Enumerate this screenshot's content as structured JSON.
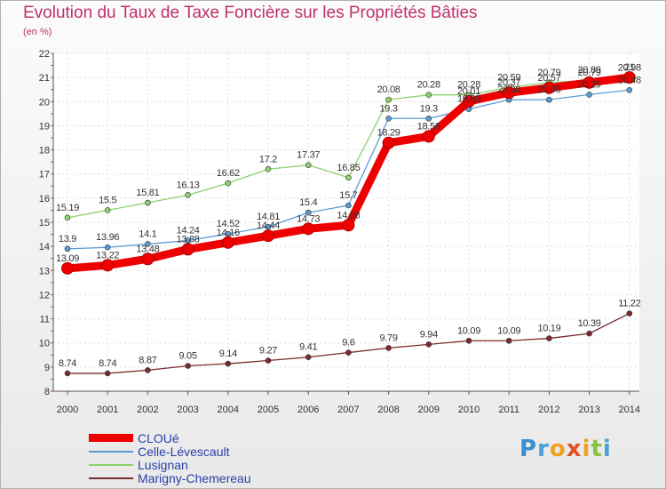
{
  "title": "Evolution du Taux de Taxe Foncière sur les Propriétés Bâties",
  "subtitle": "(en %)",
  "logo": {
    "letters": [
      "P",
      "r",
      "o",
      "x",
      "i",
      "t",
      "i"
    ],
    "colors": [
      "#3a8fd1",
      "#4aa0d8",
      "#f0a020",
      "#e05020",
      "#f0a020",
      "#8cc040",
      "#4aa0d8"
    ]
  },
  "chart_data": {
    "type": "line",
    "title": "Evolution du Taux de Taxe Foncière sur les Propriétés Bâties",
    "ylabel": "(en %)",
    "xlabel": "",
    "ylim": [
      8,
      22
    ],
    "yticks": [
      8,
      9,
      10,
      11,
      12,
      13,
      14,
      15,
      16,
      17,
      18,
      19,
      20,
      21,
      22
    ],
    "categories": [
      "2000",
      "2001",
      "2002",
      "2003",
      "2004",
      "2005",
      "2006",
      "2007",
      "2008",
      "2009",
      "2010",
      "2011",
      "2012",
      "2013",
      "2014"
    ],
    "series": [
      {
        "name": "CLOUé",
        "color": "#ee0000",
        "width": "thick",
        "values": [
          13.09,
          13.22,
          13.48,
          13.88,
          14.16,
          14.44,
          14.73,
          14.88,
          18.29,
          18.56,
          20.01,
          20.37,
          20.57,
          20.79,
          21.0
        ],
        "labels": [
          "13.09",
          "13.22",
          "13.48",
          "13.88",
          "14.16",
          "14.44",
          "14.73",
          "14.88",
          "18.29",
          "18.56",
          "20.01",
          "20.37",
          "20.57",
          "20.79",
          "21"
        ]
      },
      {
        "name": "Celle-Lévescault",
        "color": "#5b9bd5",
        "width": "thin",
        "values": [
          13.9,
          13.96,
          14.1,
          14.24,
          14.52,
          14.81,
          15.4,
          15.7,
          19.3,
          19.3,
          19.69,
          20.08,
          20.08,
          20.29,
          20.48
        ],
        "labels": [
          "13.9",
          "13.96",
          "14.1",
          "14.24",
          "14.52",
          "14.81",
          "15.4",
          "15.7",
          "19.3",
          "19.3",
          "19.69",
          "20.08",
          "20.08",
          "20.29",
          "20.48"
        ]
      },
      {
        "name": "Lusignan",
        "color": "#8cd16b",
        "width": "thin",
        "values": [
          15.19,
          15.5,
          15.81,
          16.13,
          16.62,
          17.2,
          17.37,
          16.85,
          20.08,
          20.28,
          20.28,
          20.59,
          20.79,
          20.89,
          20.98
        ],
        "labels": [
          "15.19",
          "15.5",
          "15.81",
          "16.13",
          "16.62",
          "17.2",
          "17.37",
          "16.85",
          "20.08",
          "20.28",
          "20.28",
          "20.59",
          "20.79",
          "20.89",
          "20.98"
        ]
      },
      {
        "name": "Marigny-Chemereau",
        "color": "#7a2a2a",
        "width": "thin",
        "values": [
          8.74,
          8.74,
          8.87,
          9.05,
          9.14,
          9.27,
          9.41,
          9.6,
          9.79,
          9.94,
          10.09,
          10.09,
          10.19,
          10.39,
          11.22
        ],
        "labels": [
          "8.74",
          "8.74",
          "8.87",
          "9.05",
          "9.14",
          "9.27",
          "9.41",
          "9.6",
          "9.79",
          "9.94",
          "10.09",
          "10.09",
          "10.19",
          "10.39",
          "11.22"
        ]
      }
    ],
    "legend_position": "bottom-left",
    "grid": true
  }
}
